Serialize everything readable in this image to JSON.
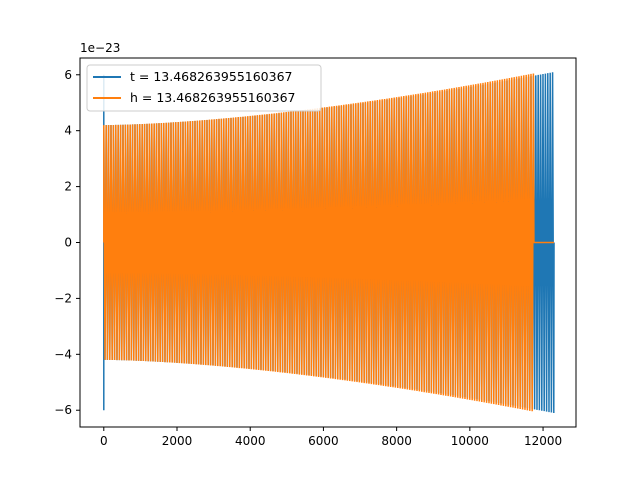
{
  "chart_data": {
    "type": "line",
    "title": "",
    "xlabel": "",
    "ylabel": "",
    "y_offset_label": "1e−23",
    "xlim": [
      -650,
      12900
    ],
    "ylim": [
      -6.6,
      6.6
    ],
    "xticks": [
      0,
      2000,
      4000,
      6000,
      8000,
      10000,
      12000
    ],
    "yticks": [
      -6,
      -4,
      -2,
      0,
      2,
      4,
      6
    ],
    "grid": false,
    "legend_position": "upper-left",
    "series": [
      {
        "name": "t = 13.468263955160367",
        "color": "#1f77b4",
        "start_x": 0,
        "end_x": 12300,
        "initial_spike": 6.0,
        "amplitude_start": 4.2,
        "amplitude_end": 6.1
      },
      {
        "name": "h = 13.468263955160367",
        "color": "#ff7f0e",
        "start_x": 0,
        "end_x": 11750,
        "flat_until": 12300,
        "amplitude_start": 4.2,
        "amplitude_end": 6.05
      }
    ]
  }
}
